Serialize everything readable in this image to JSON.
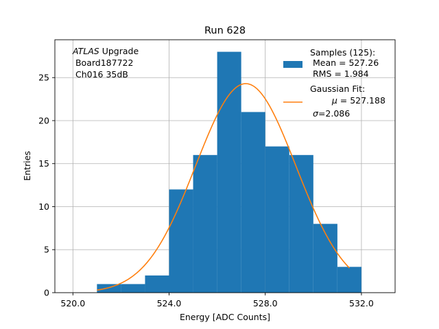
{
  "chart_data": {
    "type": "bar",
    "title": "Run 628",
    "xlabel": "Energy [ADC Counts]",
    "ylabel": "Entries",
    "xlim": [
      519.25,
      533.4
    ],
    "ylim": [
      0,
      29.4
    ],
    "xticks": [
      520,
      524,
      528,
      532
    ],
    "xtick_labels": [
      "520.0",
      "524.0",
      "528.0",
      "532.0"
    ],
    "yticks": [
      0,
      5,
      10,
      15,
      20,
      25
    ],
    "ytick_labels": [
      "0",
      "5",
      "10",
      "15",
      "20",
      "25"
    ],
    "grid": true,
    "histogram": {
      "bin_edges": [
        521,
        522,
        523,
        524,
        525,
        526,
        527,
        528,
        529,
        530,
        531,
        532
      ],
      "counts": [
        1,
        1,
        2,
        12,
        16,
        28,
        21,
        17,
        16,
        8,
        3
      ],
      "color": "#1f77b4"
    },
    "fit": {
      "type": "gaussian",
      "amplitude": 24.3,
      "mu": 527.188,
      "sigma": 2.086,
      "x_range": [
        521,
        531.5
      ],
      "color": "#ff7f0e"
    },
    "annotation": {
      "line1_italic": "ATLAS",
      "line1_rest": " Upgrade",
      "line2": " Board187722",
      "line3": " Ch016 35dB"
    },
    "legend": {
      "position": "top-right",
      "samples_title": "Samples (125):",
      "samples_mean": " Mean = 527.26",
      "samples_rms": " RMS = 1.984",
      "fit_title": "Gaussian Fit:",
      "fit_mu_symbol": "μ",
      "fit_mu_value": " = 527.188",
      "fit_sigma_symbol": "σ",
      "fit_sigma_value": "=2.086"
    }
  }
}
